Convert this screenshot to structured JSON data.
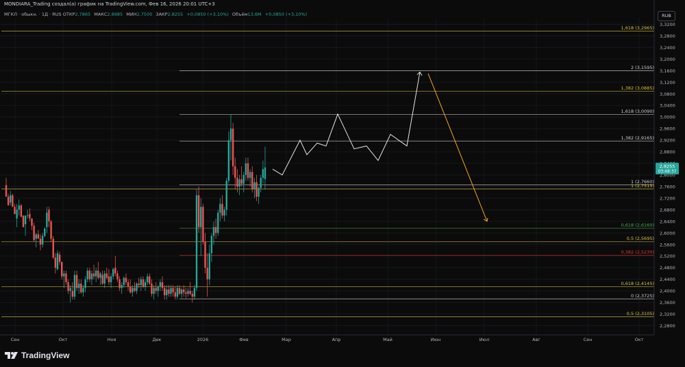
{
  "header": {
    "title": "MONDIARA_Trading создал(а) график на TradingView.com, Фев 16, 2026 20:01 UTC+3"
  },
  "ohlc": {
    "symbol_line": "МГКЛ · обыкн. · 1Д · RUS",
    "open_label": "ОТКР",
    "open": "2,7865",
    "high_label": "МАКС",
    "high": "2,8985",
    "low_label": "МИН",
    "low": "2,7500",
    "close_label": "ЗАКР",
    "close": "2,8255",
    "change": "+0,0850 (+3,10%)",
    "volume_label": "Объём",
    "volume": "13,6M",
    "volume_change": "+0,0850 (+3,10%)"
  },
  "currency": "RUB",
  "price_tag": {
    "price": "2,8255",
    "time": "03:48:37"
  },
  "brand": {
    "name": "TradingView"
  },
  "colors": {
    "background": "#0b0b0b",
    "up": "#26a69a",
    "down": "#ef5350",
    "fib_yellow": "#d8c341",
    "fib_white": "#cfcfcf",
    "fib_green": "#4caf50",
    "fib_red": "#e53935",
    "projection_path": "#e6e6e6",
    "projection_arrow": "#f5a623"
  },
  "chart_data": {
    "type": "candlestick",
    "ylim": [
      2.26,
      3.34
    ],
    "y_ticks": [
      "3,3200",
      "3,2800",
      "3,2400",
      "3,2000",
      "3,1600",
      "3,1200",
      "3,0800",
      "3,0400",
      "3,0000",
      "2,9600",
      "2,9200",
      "2,8800",
      "2,8400",
      "2,8000",
      "2,7600",
      "2,7200",
      "2,6800",
      "2,6400",
      "2,6000",
      "2,5600",
      "2,5200",
      "2,4800",
      "2,4400",
      "2,4000",
      "2,3600",
      "2,3200",
      "2,2800"
    ],
    "x_ticks": [
      "Сен",
      "Окт",
      "Ноя",
      "Дек",
      "2026",
      "Фев",
      "Мар",
      "Апр",
      "Май",
      "Июн",
      "Июл",
      "Авг",
      "Сен",
      "Окт"
    ],
    "fib_levels": [
      {
        "label": "1,618 (3,2965)",
        "value": 3.2965,
        "color": "yellow",
        "extent": "full"
      },
      {
        "label": "2 (3,1595)",
        "value": 3.1595,
        "color": "white",
        "extent": "right"
      },
      {
        "label": "1,382 (3,0885)",
        "value": 3.0885,
        "color": "yellow",
        "extent": "full"
      },
      {
        "label": "1,618 (3,0090)",
        "value": 3.009,
        "color": "white",
        "extent": "right"
      },
      {
        "label": "1,382 (2,9165)",
        "value": 2.9165,
        "color": "white",
        "extent": "right"
      },
      {
        "label": "1 (2,7660)",
        "value": 2.766,
        "color": "white",
        "extent": "right"
      },
      {
        "label": "1 (2,7515)",
        "value": 2.7515,
        "color": "yellow",
        "extent": "full"
      },
      {
        "label": "0,618 (2,6160)",
        "value": 2.616,
        "color": "green",
        "extent": "right"
      },
      {
        "label": "0,5 (2,5695)",
        "value": 2.5695,
        "color": "yellow",
        "extent": "full"
      },
      {
        "label": "0,382 (2,5230)",
        "value": 2.523,
        "color": "red",
        "extent": "right"
      },
      {
        "label": "0,618 (2,4145)",
        "value": 2.4145,
        "color": "yellow",
        "extent": "full"
      },
      {
        "label": "0 (2,3725)",
        "value": 2.3725,
        "color": "white",
        "extent": "right"
      },
      {
        "label": "0,5 (2,3105)",
        "value": 2.3105,
        "color": "yellow",
        "extent": "full"
      }
    ],
    "projection_path": [
      2.82,
      2.8,
      2.92,
      2.87,
      2.91,
      2.9,
      3.01,
      2.89,
      2.9,
      2.85,
      2.94,
      2.9,
      3.155
    ],
    "projection_arrow": [
      3.15,
      2.64
    ],
    "candles": [
      [
        2.765,
        2.79,
        2.735,
        2.725
      ],
      [
        2.725,
        2.735,
        2.7,
        2.695
      ],
      [
        2.705,
        2.745,
        2.695,
        2.73
      ],
      [
        2.73,
        2.735,
        2.69,
        2.69
      ],
      [
        2.69,
        2.7,
        2.665,
        2.665
      ],
      [
        2.65,
        2.7,
        2.62,
        2.68
      ],
      [
        2.68,
        2.715,
        2.66,
        2.695
      ],
      [
        2.695,
        2.7,
        2.655,
        2.655
      ],
      [
        2.66,
        2.66,
        2.62,
        2.62
      ],
      [
        2.63,
        2.66,
        2.59,
        2.66
      ],
      [
        2.66,
        2.68,
        2.65,
        2.66
      ],
      [
        2.665,
        2.685,
        2.64,
        2.65
      ],
      [
        2.65,
        2.65,
        2.61,
        2.625
      ],
      [
        2.625,
        2.635,
        2.57,
        2.575
      ],
      [
        2.58,
        2.6,
        2.55,
        2.595
      ],
      [
        2.595,
        2.61,
        2.58,
        2.58
      ],
      [
        2.58,
        2.595,
        2.54,
        2.56
      ],
      [
        2.56,
        2.6,
        2.55,
        2.59
      ],
      [
        2.59,
        2.62,
        2.585,
        2.615
      ],
      [
        2.62,
        2.69,
        2.6,
        2.67
      ],
      [
        2.68,
        2.69,
        2.62,
        2.64
      ],
      [
        2.64,
        2.645,
        2.57,
        2.58
      ],
      [
        2.58,
        2.59,
        2.51,
        2.515
      ],
      [
        2.515,
        2.53,
        2.46,
        2.48
      ],
      [
        2.475,
        2.54,
        2.47,
        2.53
      ],
      [
        2.525,
        2.535,
        2.49,
        2.5
      ],
      [
        2.5,
        2.5,
        2.44,
        2.45
      ],
      [
        2.45,
        2.47,
        2.41,
        2.46
      ],
      [
        2.46,
        2.47,
        2.42,
        2.43
      ],
      [
        2.43,
        2.44,
        2.39,
        2.4
      ],
      [
        2.4,
        2.42,
        2.36,
        2.41
      ],
      [
        2.4,
        2.43,
        2.37,
        2.38
      ],
      [
        2.38,
        2.47,
        2.37,
        2.455
      ],
      [
        2.455,
        2.47,
        2.4,
        2.41
      ],
      [
        2.41,
        2.44,
        2.39,
        2.425
      ],
      [
        2.425,
        2.44,
        2.39,
        2.395
      ],
      [
        2.395,
        2.42,
        2.38,
        2.41
      ],
      [
        2.41,
        2.45,
        2.395,
        2.44
      ],
      [
        2.44,
        2.48,
        2.43,
        2.47
      ],
      [
        2.47,
        2.48,
        2.43,
        2.44
      ],
      [
        2.44,
        2.47,
        2.42,
        2.46
      ],
      [
        2.46,
        2.49,
        2.44,
        2.45
      ],
      [
        2.45,
        2.48,
        2.43,
        2.47
      ],
      [
        2.47,
        2.5,
        2.44,
        2.445
      ],
      [
        2.445,
        2.465,
        2.42,
        2.46
      ],
      [
        2.455,
        2.47,
        2.42,
        2.425
      ],
      [
        2.425,
        2.47,
        2.41,
        2.46
      ],
      [
        2.46,
        2.48,
        2.44,
        2.445
      ],
      [
        2.45,
        2.475,
        2.42,
        2.43
      ],
      [
        2.43,
        2.46,
        2.41,
        2.45
      ],
      [
        2.45,
        2.48,
        2.44,
        2.475
      ],
      [
        2.48,
        2.52,
        2.45,
        2.46
      ],
      [
        2.46,
        2.47,
        2.43,
        2.44
      ],
      [
        2.44,
        2.45,
        2.4,
        2.41
      ],
      [
        2.41,
        2.43,
        2.39,
        2.42
      ],
      [
        2.42,
        2.45,
        2.41,
        2.445
      ],
      [
        2.445,
        2.46,
        2.42,
        2.43
      ],
      [
        2.43,
        2.44,
        2.4,
        2.415
      ],
      [
        2.415,
        2.44,
        2.39,
        2.395
      ],
      [
        2.395,
        2.42,
        2.38,
        2.41
      ],
      [
        2.41,
        2.43,
        2.395,
        2.4
      ],
      [
        2.4,
        2.43,
        2.39,
        2.425
      ],
      [
        2.425,
        2.445,
        2.41,
        2.42
      ],
      [
        2.42,
        2.45,
        2.4,
        2.44
      ],
      [
        2.44,
        2.45,
        2.41,
        2.415
      ],
      [
        2.415,
        2.44,
        2.4,
        2.43
      ],
      [
        2.43,
        2.46,
        2.42,
        2.45
      ],
      [
        2.45,
        2.46,
        2.42,
        2.425
      ],
      [
        2.425,
        2.44,
        2.38,
        2.39
      ],
      [
        2.39,
        2.42,
        2.37,
        2.41
      ],
      [
        2.41,
        2.43,
        2.39,
        2.4
      ],
      [
        2.4,
        2.42,
        2.38,
        2.415
      ],
      [
        2.415,
        2.44,
        2.4,
        2.43
      ],
      [
        2.43,
        2.45,
        2.4,
        2.41
      ],
      [
        2.41,
        2.42,
        2.37,
        2.385
      ],
      [
        2.385,
        2.42,
        2.37,
        2.405
      ],
      [
        2.405,
        2.42,
        2.38,
        2.39
      ],
      [
        2.39,
        2.42,
        2.38,
        2.41
      ],
      [
        2.41,
        2.42,
        2.38,
        2.395
      ],
      [
        2.395,
        2.415,
        2.37,
        2.38
      ],
      [
        2.38,
        2.42,
        2.37,
        2.41
      ],
      [
        2.41,
        2.42,
        2.385,
        2.39
      ],
      [
        2.39,
        2.41,
        2.375,
        2.405
      ],
      [
        2.405,
        2.42,
        2.38,
        2.395
      ],
      [
        2.395,
        2.41,
        2.375,
        2.39
      ],
      [
        2.39,
        2.41,
        2.38,
        2.4
      ],
      [
        2.4,
        2.43,
        2.385,
        2.39
      ],
      [
        2.39,
        2.4,
        2.36,
        2.38
      ],
      [
        2.38,
        2.42,
        2.37,
        2.41
      ],
      [
        2.41,
        2.75,
        2.4,
        2.73
      ],
      [
        2.73,
        2.76,
        2.6,
        2.62
      ],
      [
        2.62,
        2.72,
        2.52,
        2.69
      ],
      [
        2.69,
        2.7,
        2.56,
        2.57
      ],
      [
        2.57,
        2.6,
        2.46,
        2.48
      ],
      [
        2.48,
        2.53,
        2.38,
        2.44
      ],
      [
        2.44,
        2.56,
        2.42,
        2.53
      ],
      [
        2.53,
        2.6,
        2.5,
        2.59
      ],
      [
        2.59,
        2.64,
        2.56,
        2.62
      ],
      [
        2.62,
        2.65,
        2.58,
        2.6
      ],
      [
        2.6,
        2.68,
        2.59,
        2.67
      ],
      [
        2.67,
        2.72,
        2.64,
        2.7
      ],
      [
        2.7,
        2.73,
        2.65,
        2.66
      ],
      [
        2.66,
        2.69,
        2.64,
        2.68
      ],
      [
        2.68,
        2.79,
        2.66,
        2.78
      ],
      [
        2.78,
        2.95,
        2.77,
        2.92
      ],
      [
        2.92,
        3.01,
        2.85,
        2.96
      ],
      [
        2.96,
        2.98,
        2.8,
        2.83
      ],
      [
        2.83,
        2.86,
        2.75,
        2.79
      ],
      [
        2.79,
        2.82,
        2.74,
        2.76
      ],
      [
        2.76,
        2.8,
        2.73,
        2.785
      ],
      [
        2.785,
        2.83,
        2.76,
        2.77
      ],
      [
        2.77,
        2.81,
        2.74,
        2.8
      ],
      [
        2.8,
        2.86,
        2.78,
        2.84
      ],
      [
        2.84,
        2.86,
        2.78,
        2.79
      ],
      [
        2.79,
        2.82,
        2.76,
        2.81
      ],
      [
        2.81,
        2.83,
        2.74,
        2.75
      ],
      [
        2.75,
        2.79,
        2.72,
        2.775
      ],
      [
        2.775,
        2.8,
        2.71,
        2.725
      ],
      [
        2.725,
        2.76,
        2.7,
        2.755
      ],
      [
        2.755,
        2.8,
        2.74,
        2.79
      ],
      [
        2.79,
        2.85,
        2.77,
        2.82
      ],
      [
        2.786,
        2.898,
        2.75,
        2.826
      ]
    ]
  }
}
